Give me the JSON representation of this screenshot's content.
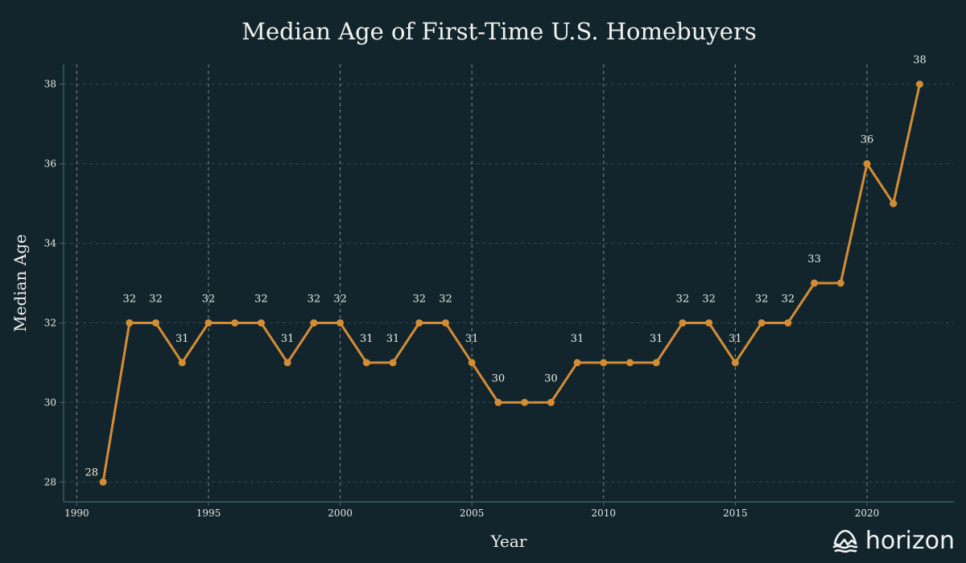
{
  "chart_data": {
    "type": "line",
    "title": "Median Age of First-Time U.S. Homebuyers",
    "xlabel": "Year",
    "ylabel": "Median Age",
    "xlim": [
      1989.5,
      2023.3
    ],
    "ylim": [
      27.5,
      38.5
    ],
    "xticks": [
      1990,
      1995,
      2000,
      2005,
      2010,
      2015,
      2020
    ],
    "yticks": [
      28,
      30,
      32,
      34,
      36,
      38
    ],
    "grid": true,
    "legend": "none",
    "colors": {
      "line": "#d48d35",
      "background": "#12252c",
      "grid_dashed": "#2d4a4f",
      "xgrid_dashed": "#7d8e90",
      "axis": "#3e6a6d"
    },
    "series": [
      {
        "x": [
          1991,
          1992,
          1993,
          1994,
          1995,
          1996,
          1997,
          1998,
          1999,
          2000,
          2001,
          2002,
          2003,
          2004,
          2005,
          2006,
          2007,
          2008,
          2009,
          2010,
          2011,
          2012,
          2013,
          2014,
          2015,
          2016,
          2017,
          2018,
          2019,
          2020,
          2021,
          2022
        ],
        "values": [
          28,
          32,
          32,
          31,
          32,
          32,
          32,
          31,
          32,
          32,
          31,
          31,
          32,
          32,
          31,
          30,
          30,
          30,
          31,
          31,
          31,
          31,
          32,
          32,
          31,
          32,
          32,
          33,
          33,
          36,
          35,
          38
        ]
      }
    ],
    "data_labels": [
      {
        "x": 1991,
        "text": "28"
      },
      {
        "x": 1992,
        "text": "32"
      },
      {
        "x": 1993,
        "text": "32"
      },
      {
        "x": 1994,
        "text": "31"
      },
      {
        "x": 1995,
        "text": "32"
      },
      {
        "x": 1997,
        "text": "32"
      },
      {
        "x": 1998,
        "text": "31"
      },
      {
        "x": 1999,
        "text": "32"
      },
      {
        "x": 2000,
        "text": "32"
      },
      {
        "x": 2001,
        "text": "31"
      },
      {
        "x": 2002,
        "text": "31"
      },
      {
        "x": 2003,
        "text": "32"
      },
      {
        "x": 2004,
        "text": "32"
      },
      {
        "x": 2005,
        "text": "31"
      },
      {
        "x": 2006,
        "text": "30"
      },
      {
        "x": 2008,
        "text": "30"
      },
      {
        "x": 2009,
        "text": "31"
      },
      {
        "x": 2012,
        "text": "31"
      },
      {
        "x": 2013,
        "text": "32"
      },
      {
        "x": 2014,
        "text": "32"
      },
      {
        "x": 2015,
        "text": "31"
      },
      {
        "x": 2016,
        "text": "32"
      },
      {
        "x": 2017,
        "text": "32"
      },
      {
        "x": 2018,
        "text": "33"
      },
      {
        "x": 2020,
        "text": "36"
      },
      {
        "x": 2022,
        "text": "38"
      }
    ]
  },
  "brand": {
    "name": "horizon",
    "icon": "mountain-logo-icon"
  }
}
